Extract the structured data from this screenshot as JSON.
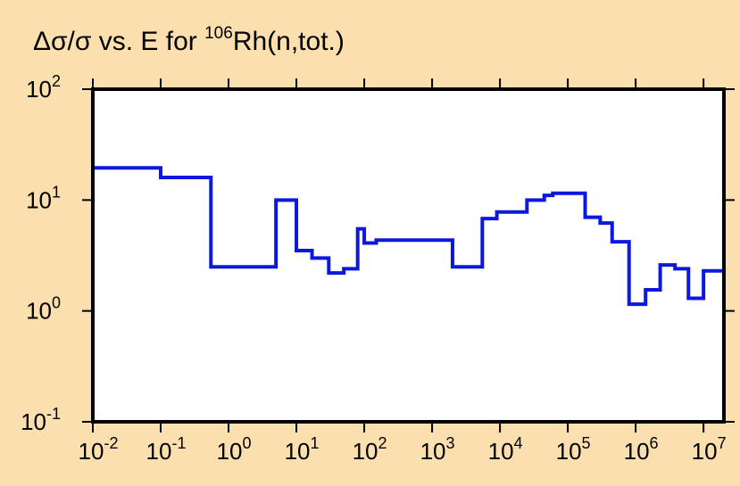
{
  "colors": {
    "background": "#fbdfae",
    "plot_area": "#ffffff",
    "series": "#0c18e0",
    "axis": "#000000"
  },
  "chart_data": {
    "type": "line",
    "step": true,
    "title": {
      "prefix": "Δσ/σ vs. E for ",
      "superscript": "106",
      "suffix": "Rh(n,tot.)"
    },
    "xlabel": "",
    "ylabel": "",
    "x_scale": "log",
    "y_scale": "log",
    "xlim": [
      0.01,
      20000000
    ],
    "ylim": [
      0.1,
      100
    ],
    "x_ticks": [
      {
        "value": 0.01,
        "base": "10",
        "exp": "-2"
      },
      {
        "value": 0.1,
        "base": "10",
        "exp": "-1"
      },
      {
        "value": 1,
        "base": "10",
        "exp": "0"
      },
      {
        "value": 10,
        "base": "10",
        "exp": "1"
      },
      {
        "value": 100,
        "base": "10",
        "exp": "2"
      },
      {
        "value": 1000,
        "base": "10",
        "exp": "3"
      },
      {
        "value": 10000,
        "base": "10",
        "exp": "4"
      },
      {
        "value": 100000,
        "base": "10",
        "exp": "5"
      },
      {
        "value": 1000000,
        "base": "10",
        "exp": "6"
      },
      {
        "value": 10000000,
        "base": "10",
        "exp": "7"
      }
    ],
    "y_ticks": [
      {
        "value": 0.1,
        "base": "10",
        "exp": "-1"
      },
      {
        "value": 1,
        "base": "10",
        "exp": "0"
      },
      {
        "value": 10,
        "base": "10",
        "exp": "1"
      },
      {
        "value": 100,
        "base": "10",
        "exp": "2"
      }
    ],
    "grid": false,
    "series": [
      {
        "bins": [
          {
            "x0": 0.01,
            "x1": 0.1,
            "y": 19.5
          },
          {
            "x0": 0.1,
            "x1": 0.55,
            "y": 16.0
          },
          {
            "x0": 0.55,
            "x1": 5.0,
            "y": 2.5
          },
          {
            "x0": 5.0,
            "x1": 10.0,
            "y": 10.0
          },
          {
            "x0": 10.0,
            "x1": 17.0,
            "y": 3.5
          },
          {
            "x0": 17.0,
            "x1": 30.0,
            "y": 3.0
          },
          {
            "x0": 30.0,
            "x1": 50.0,
            "y": 2.2
          },
          {
            "x0": 50.0,
            "x1": 80.0,
            "y": 2.4
          },
          {
            "x0": 80.0,
            "x1": 100.0,
            "y": 5.5
          },
          {
            "x0": 100.0,
            "x1": 150.0,
            "y": 4.1
          },
          {
            "x0": 150.0,
            "x1": 2000.0,
            "y": 4.35
          },
          {
            "x0": 2000.0,
            "x1": 5500.0,
            "y": 2.5
          },
          {
            "x0": 5500.0,
            "x1": 9000.0,
            "y": 6.8
          },
          {
            "x0": 9000.0,
            "x1": 25000.0,
            "y": 7.8
          },
          {
            "x0": 25000.0,
            "x1": 45000.0,
            "y": 10.0
          },
          {
            "x0": 45000.0,
            "x1": 60000.0,
            "y": 11.0
          },
          {
            "x0": 60000.0,
            "x1": 180000.0,
            "y": 11.5
          },
          {
            "x0": 180000.0,
            "x1": 300000.0,
            "y": 7.0
          },
          {
            "x0": 300000.0,
            "x1": 450000.0,
            "y": 6.2
          },
          {
            "x0": 450000.0,
            "x1": 800000.0,
            "y": 4.2
          },
          {
            "x0": 800000.0,
            "x1": 1400000.0,
            "y": 1.15
          },
          {
            "x0": 1400000.0,
            "x1": 2300000.0,
            "y": 1.55
          },
          {
            "x0": 2300000.0,
            "x1": 3800000.0,
            "y": 2.6
          },
          {
            "x0": 3800000.0,
            "x1": 6000000.0,
            "y": 2.4
          },
          {
            "x0": 6000000.0,
            "x1": 10000000.0,
            "y": 1.3
          },
          {
            "x0": 10000000.0,
            "x1": 20000000.0,
            "y": 2.3
          }
        ]
      }
    ]
  }
}
